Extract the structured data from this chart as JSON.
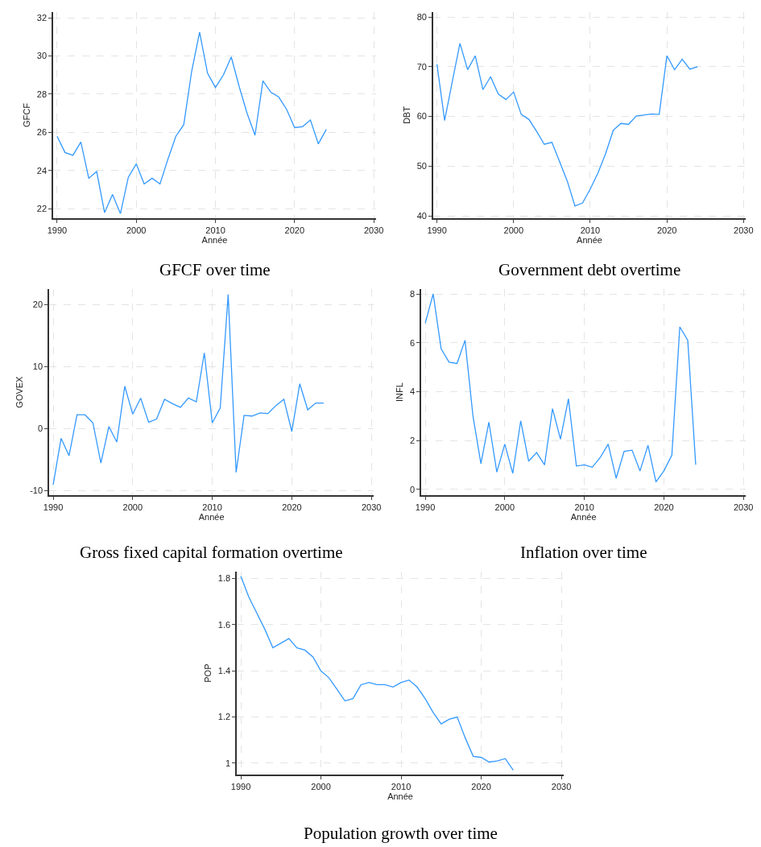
{
  "chart_data": [
    {
      "type": "line",
      "title": "GFCF over time",
      "xlabel": "Année",
      "ylabel": "GFCF",
      "color": "#3399ff",
      "grid": true,
      "line_style": "solid",
      "x": [
        1990,
        1991,
        1992,
        1993,
        1994,
        1995,
        1996,
        1997,
        1998,
        1999,
        2000,
        2001,
        2002,
        2003,
        2004,
        2005,
        2006,
        2007,
        2008,
        2009,
        2010,
        2011,
        2012,
        2013,
        2014,
        2015,
        2016,
        2017,
        2018,
        2019,
        2020,
        2021,
        2022,
        2023,
        2024
      ],
      "values": [
        25.8,
        24.95,
        24.8,
        25.5,
        23.6,
        23.95,
        21.8,
        22.75,
        21.75,
        23.65,
        24.35,
        23.3,
        23.6,
        23.3,
        24.6,
        25.8,
        26.4,
        29.2,
        31.25,
        29.1,
        28.35,
        29.0,
        29.95,
        28.4,
        27.0,
        25.85,
        28.7,
        28.1,
        27.85,
        27.2,
        26.25,
        26.3,
        26.65,
        25.4,
        26.15
      ],
      "xlim": [
        1989.5,
        2030.3
      ],
      "ylim": [
        21.5,
        32.3
      ],
      "xticks": [
        1990,
        2000,
        2010,
        2020,
        2030
      ],
      "yticks": [
        22,
        24,
        26,
        28,
        30,
        32
      ]
    },
    {
      "type": "line",
      "title": "Government debt overtime",
      "xlabel": "Année",
      "ylabel": "DBT",
      "color": "#3399ff",
      "grid": true,
      "line_style": "solid",
      "x": [
        1990,
        1991,
        1992,
        1993,
        1994,
        1995,
        1996,
        1997,
        1998,
        1999,
        2000,
        2001,
        2002,
        2003,
        2004,
        2005,
        2006,
        2007,
        2008,
        2009,
        2010,
        2011,
        2012,
        2013,
        2014,
        2015,
        2016,
        2017,
        2018,
        2019,
        2020,
        2021,
        2022,
        2023,
        2024
      ],
      "values": [
        70.5,
        59.2,
        67,
        74.7,
        69.4,
        72.2,
        65.4,
        68.0,
        64.5,
        63.4,
        64.9,
        60.4,
        59.4,
        57.0,
        54.4,
        54.8,
        50.9,
        47.0,
        42.0,
        42.6,
        45.4,
        48.6,
        52.5,
        57.2,
        58.6,
        58.4,
        60.1,
        60.3,
        60.5,
        60.4,
        72.2,
        69.4,
        71.5,
        69.5,
        70.0
      ],
      "xlim": [
        1989.5,
        2030.3
      ],
      "ylim": [
        39.5,
        81
      ],
      "xticks": [
        1990,
        2000,
        2010,
        2020,
        2030
      ],
      "yticks": [
        40,
        50,
        60,
        70,
        80
      ]
    },
    {
      "type": "line",
      "title": "Gross fixed capital formation overtime",
      "xlabel": "Année",
      "ylabel": "GOVEX",
      "color": "#3399ff",
      "grid": true,
      "line_style": "solid",
      "x": [
        1990,
        1991,
        1992,
        1993,
        1994,
        1995,
        1996,
        1997,
        1998,
        1999,
        2000,
        2001,
        2002,
        2003,
        2004,
        2005,
        2006,
        2007,
        2008,
        2009,
        2010,
        2011,
        2012,
        2013,
        2014,
        2015,
        2016,
        2017,
        2018,
        2019,
        2020,
        2021,
        2022,
        2023,
        2024
      ],
      "values": [
        -9.1,
        -1.6,
        -4.4,
        2.2,
        2.2,
        0.9,
        -5.6,
        0.3,
        -2.2,
        6.8,
        2.3,
        4.9,
        1.0,
        1.5,
        4.7,
        4.0,
        3.4,
        4.9,
        4.3,
        12.2,
        0.9,
        3.3,
        21.6,
        -7.1,
        2.1,
        2.0,
        2.5,
        2.4,
        3.7,
        4.7,
        -0.5,
        7.2,
        3.0,
        4.1,
        4.1
      ],
      "xlim": [
        1989.5,
        2030.3
      ],
      "ylim": [
        -10.8,
        22.5
      ],
      "xticks": [
        1990,
        2000,
        2010,
        2020,
        2030
      ],
      "yticks": [
        -10,
        0,
        10,
        20
      ]
    },
    {
      "type": "line",
      "title": "Inflation over time",
      "xlabel": "Année",
      "ylabel": "INFL",
      "color": "#3399ff",
      "grid": true,
      "line_style": "solid",
      "x": [
        1990,
        1991,
        1992,
        1993,
        1994,
        1995,
        1996,
        1997,
        1998,
        1999,
        2000,
        2001,
        2002,
        2003,
        2004,
        2005,
        2006,
        2007,
        2008,
        2009,
        2010,
        2011,
        2012,
        2013,
        2014,
        2015,
        2016,
        2017,
        2018,
        2019,
        2020,
        2021,
        2022,
        2023,
        2024
      ],
      "values": [
        6.8,
        8.0,
        5.75,
        5.2,
        5.15,
        6.1,
        3.0,
        1.05,
        2.75,
        0.7,
        1.85,
        0.65,
        2.8,
        1.15,
        1.5,
        1.0,
        3.3,
        2.05,
        3.7,
        0.95,
        1.0,
        0.9,
        1.3,
        1.85,
        0.45,
        1.55,
        1.6,
        0.75,
        1.8,
        0.3,
        0.75,
        1.4,
        6.65,
        6.1,
        1.0
      ],
      "xlim": [
        1989.5,
        2030.3
      ],
      "ylim": [
        -0.25,
        8.2
      ],
      "xticks": [
        1990,
        2000,
        2010,
        2020,
        2030
      ],
      "yticks": [
        0,
        2,
        4,
        6,
        8
      ]
    },
    {
      "type": "line",
      "title": "Population growth over time",
      "xlabel": "Année",
      "ylabel": "POP",
      "color": "#3399ff",
      "grid": true,
      "line_style": "solid",
      "x": [
        1990,
        1991,
        1992,
        1993,
        1994,
        1995,
        1996,
        1997,
        1998,
        1999,
        2000,
        2001,
        2002,
        2003,
        2004,
        2005,
        2006,
        2007,
        2008,
        2009,
        2010,
        2011,
        2012,
        2013,
        2014,
        2015,
        2016,
        2017,
        2018,
        2019,
        2020,
        2021,
        2022,
        2023,
        2024
      ],
      "values": [
        1.81,
        1.72,
        1.65,
        1.58,
        1.5,
        1.52,
        1.54,
        1.5,
        1.49,
        1.46,
        1.4,
        1.37,
        1.32,
        1.27,
        1.28,
        1.34,
        1.35,
        1.34,
        1.34,
        1.33,
        1.35,
        1.36,
        1.33,
        1.28,
        1.22,
        1.17,
        1.19,
        1.2,
        1.11,
        1.03,
        1.025,
        1.005,
        1.01,
        1.02,
        0.97
      ],
      "xlim": [
        1989.5,
        2030.3
      ],
      "ylim": [
        0.95,
        1.83
      ],
      "xticks": [
        1990,
        2000,
        2010,
        2020,
        2030
      ],
      "yticks": [
        1,
        1.2,
        1.4,
        1.6,
        1.8
      ]
    }
  ]
}
